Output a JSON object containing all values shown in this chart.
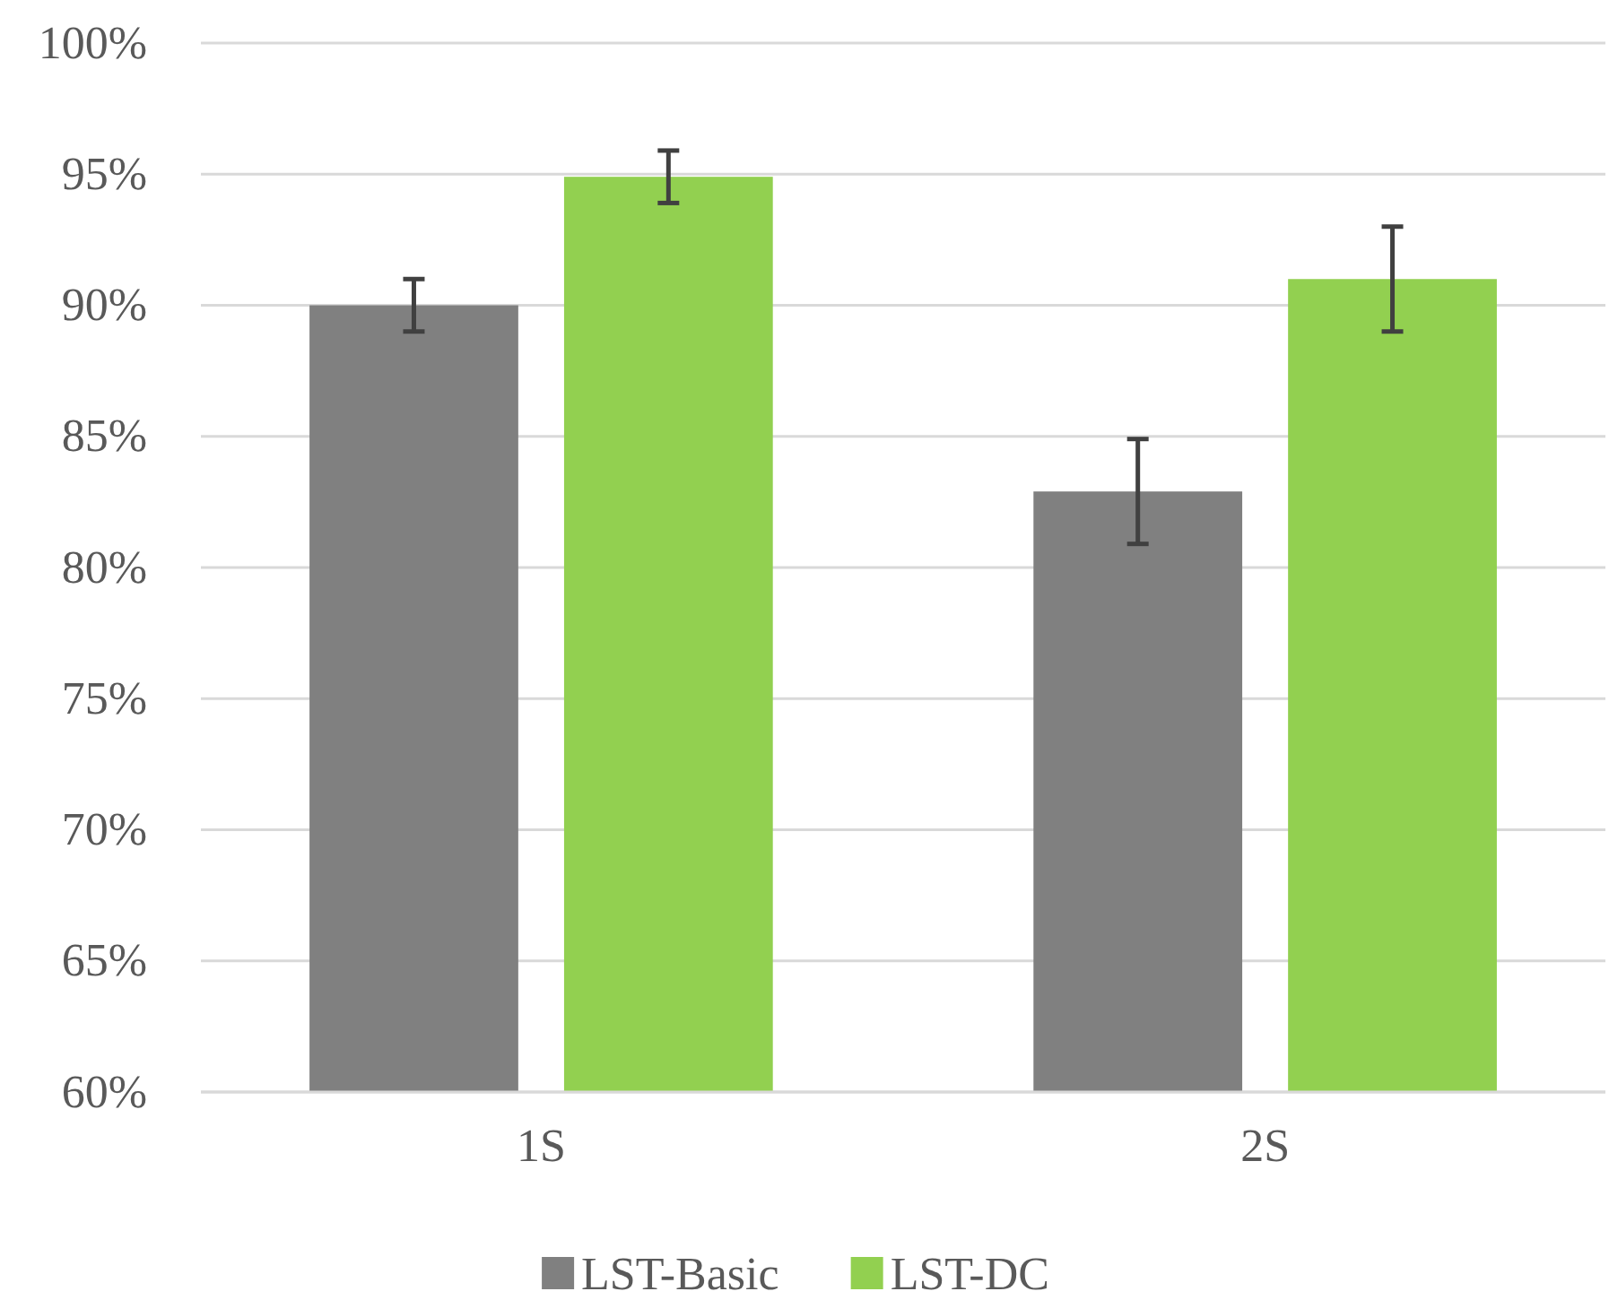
{
  "chart_data": {
    "type": "bar",
    "categories": [
      "1S",
      "2S"
    ],
    "series": [
      {
        "name": "LST-Basic",
        "color": "#808080",
        "values": [
          90,
          82.9
        ],
        "errors": [
          1,
          2
        ]
      },
      {
        "name": "LST-DC",
        "color": "#92d050",
        "values": [
          94.9,
          91
        ],
        "errors": [
          1,
          2
        ]
      }
    ],
    "ylim": [
      60,
      100
    ],
    "yticks": [
      {
        "value": 60,
        "label": "60%"
      },
      {
        "value": 65,
        "label": "65%"
      },
      {
        "value": 70,
        "label": "70%"
      },
      {
        "value": 75,
        "label": "75%"
      },
      {
        "value": 80,
        "label": "80%"
      },
      {
        "value": 85,
        "label": "85%"
      },
      {
        "value": 90,
        "label": "90%"
      },
      {
        "value": 95,
        "label": "95%"
      },
      {
        "value": 100,
        "label": "100%"
      }
    ],
    "grid": "y",
    "legend": "bottom"
  }
}
